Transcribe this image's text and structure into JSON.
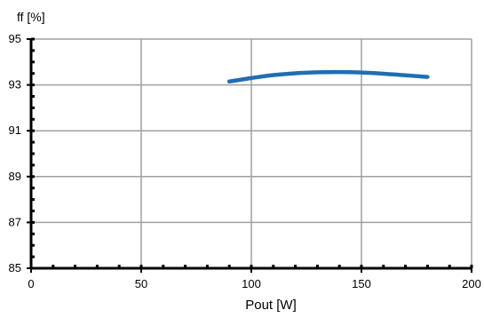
{
  "chart_data": {
    "type": "line",
    "title": "",
    "xlabel": "Pout [W]",
    "ylabel": "ff [%]",
    "xlim": [
      0,
      200
    ],
    "ylim": [
      85,
      95
    ],
    "x_ticks": [
      0,
      50,
      100,
      150,
      200
    ],
    "y_ticks": [
      85,
      87,
      89,
      91,
      93,
      95
    ],
    "x_minor_step": 10,
    "y_minor_step": 0.5,
    "grid": true,
    "series": [
      {
        "color": "#1f6eb4",
        "x": [
          90,
          100,
          110,
          120,
          130,
          140,
          150,
          160,
          170,
          180
        ],
        "y": [
          93.15,
          93.3,
          93.43,
          93.51,
          93.55,
          93.56,
          93.54,
          93.49,
          93.42,
          93.35
        ]
      }
    ]
  },
  "colors": {
    "grid": "#a0a0a0",
    "axis": "#000000",
    "frame": "#808080"
  }
}
